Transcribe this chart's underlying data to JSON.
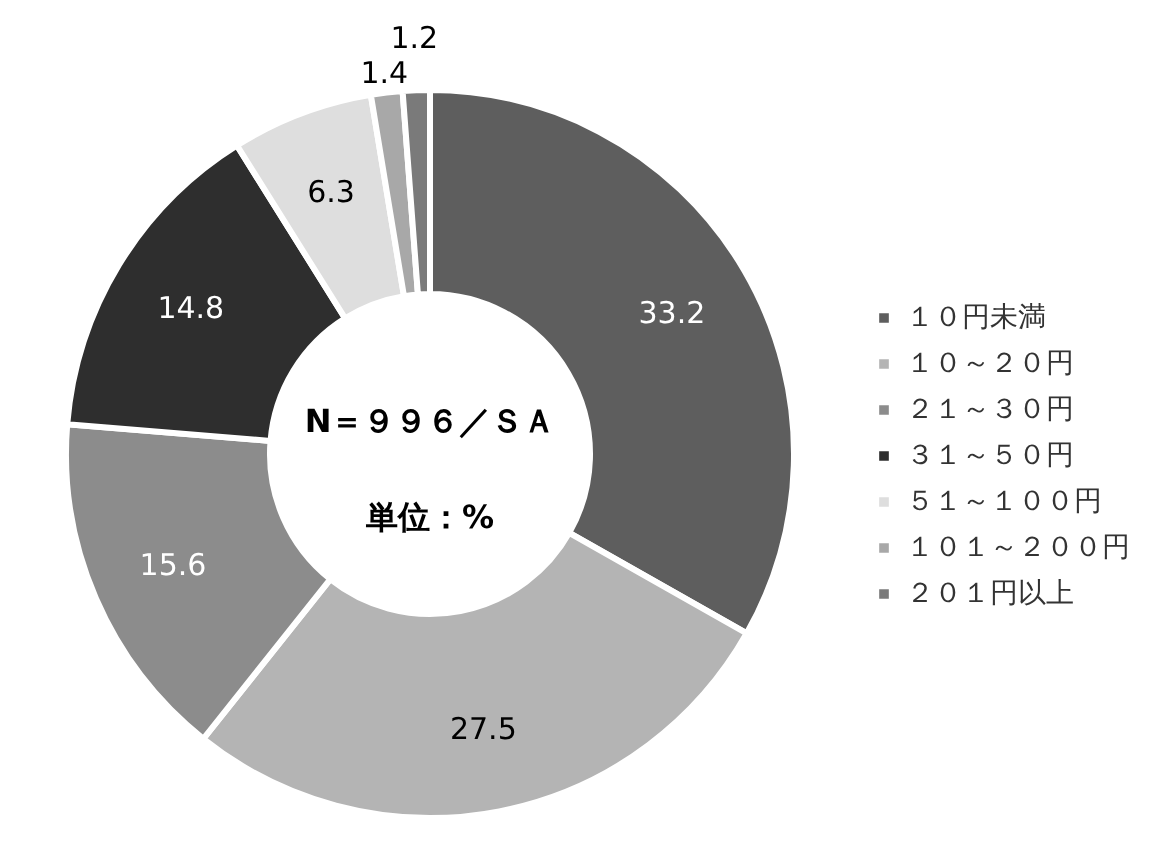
{
  "chart_data": {
    "type": "donut",
    "categories": [
      "１０円未満",
      "１０～２０円",
      "２１～３０円",
      "３１～５０円",
      "５１～１００円",
      "１０１～２００円",
      "２０１円以上"
    ],
    "values": [
      33.2,
      27.5,
      15.6,
      14.8,
      6.3,
      1.4,
      1.2
    ],
    "colors": [
      "#5e5e5e",
      "#b4b4b4",
      "#8c8c8c",
      "#2e2e2e",
      "#dedede",
      "#a8a8a8",
      "#7a7a7a"
    ],
    "data_labels": true,
    "legend": "right",
    "annotations": [
      "N＝９９６／ＳＡ",
      "単位：%"
    ]
  }
}
